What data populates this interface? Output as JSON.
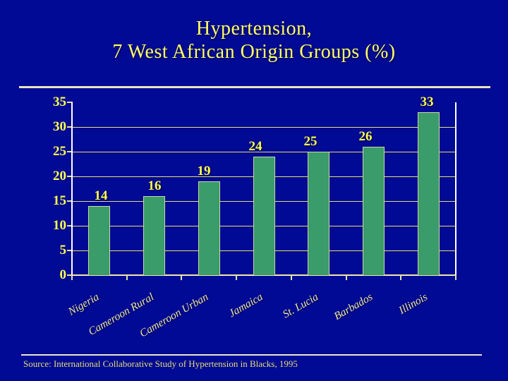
{
  "slide": {
    "background_color": "#000A94",
    "title_line1": "Hypertension,",
    "title_line2": "7 West African Origin Groups (%)",
    "title_color": "#FFFF66",
    "source_text": "Source: International Collaborative Study of Hypertension in Blacks, 1995"
  },
  "chart_data": {
    "type": "bar",
    "title": "Hypertension, 7 West African Origin Groups (%)",
    "categories": [
      "Nigeria",
      "Cameroon Rural",
      "Cameroon Urban",
      "Jamaica",
      "St. Lucia",
      "Barbados",
      "Illinois"
    ],
    "values": [
      14,
      16,
      19,
      24,
      25,
      26,
      33
    ],
    "xlabel": "",
    "ylabel": "",
    "ylim": [
      0,
      35
    ],
    "yticks": [
      0,
      5,
      10,
      15,
      20,
      25,
      30,
      35
    ],
    "grid": true,
    "legend": false,
    "bar_color": "#3A9B6B",
    "bar_border_color": "#CDD89E",
    "data_label_color": "#FFFF4D",
    "tick_label_color": "#FFFF4D",
    "category_label_color": "#EFE9A8",
    "gridline_color": "#E3E39A",
    "axis_color": "#FFFFFF"
  }
}
